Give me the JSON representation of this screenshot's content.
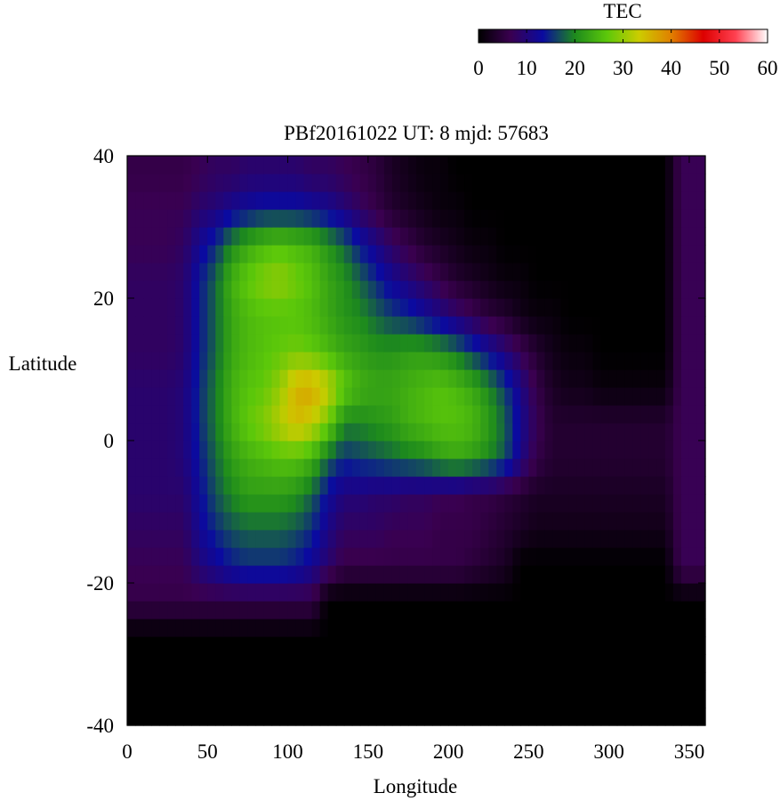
{
  "chart_data": {
    "type": "heatmap",
    "title": "PBf20161022  UT: 8  mjd: 57683",
    "xlabel": "Longitude",
    "ylabel": "Latitude",
    "xlim": [
      0,
      360
    ],
    "ylim": [
      -40,
      40
    ],
    "xticks": [
      0,
      50,
      100,
      150,
      200,
      250,
      300,
      350
    ],
    "yticks": [
      40,
      20,
      0,
      -20,
      -40
    ],
    "grid": false,
    "colorbar": {
      "label": "TEC",
      "range": [
        0,
        60
      ],
      "ticks": [
        0,
        10,
        20,
        30,
        40,
        50,
        60
      ],
      "colormap": [
        "#000000",
        "#3a0050",
        "#0a0aa0",
        "#1d8a1d",
        "#5cc80a",
        "#cccc00",
        "#e08000",
        "#dd0000",
        "#ff4050",
        "#ffffff"
      ],
      "placement": "top-right"
    },
    "grid_step": {
      "lon": 10,
      "lat": 5
    },
    "tec": [
      [
        0,
        0,
        0,
        0,
        0,
        0,
        0,
        0,
        0,
        0,
        0,
        0,
        0,
        0,
        0,
        0,
        0,
        0,
        0,
        0,
        0,
        0,
        0,
        0,
        0,
        0,
        0,
        0,
        0,
        0,
        0,
        0,
        0,
        0,
        0,
        0
      ],
      [
        0,
        0,
        0,
        0,
        0,
        0,
        0,
        0,
        0,
        0,
        0,
        0,
        0,
        0,
        0,
        0,
        0,
        0,
        0,
        0,
        0,
        0,
        0,
        0,
        0,
        0,
        0,
        0,
        0,
        0,
        0,
        0,
        0,
        0,
        0,
        0
      ],
      [
        0,
        0,
        0,
        0,
        0,
        0,
        0,
        0,
        0,
        0,
        0,
        0,
        0,
        0,
        0,
        0,
        0,
        0,
        0,
        0,
        0,
        0,
        0,
        0,
        0,
        0,
        0,
        0,
        0,
        0,
        0,
        0,
        0,
        0,
        0,
        0
      ],
      [
        6,
        6,
        6,
        6,
        6,
        6,
        6,
        6,
        6,
        6,
        6,
        6,
        0,
        0,
        0,
        0,
        0,
        0,
        0,
        0,
        0,
        0,
        0,
        0,
        0,
        0,
        0,
        0,
        0,
        0,
        0,
        0,
        0,
        0,
        0,
        0
      ],
      [
        7,
        7,
        7,
        7,
        10,
        12,
        14,
        15,
        15,
        15,
        14,
        12,
        9,
        6,
        6,
        6,
        6,
        6,
        6,
        6,
        6,
        5,
        4,
        3,
        0,
        0,
        0,
        0,
        0,
        0,
        0,
        0,
        0,
        0,
        7,
        7
      ],
      [
        8,
        8,
        8,
        8,
        12,
        15,
        17,
        18,
        18,
        18,
        17,
        15,
        11,
        8,
        8,
        8,
        7,
        7,
        7,
        6,
        6,
        6,
        5,
        4,
        3,
        2,
        2,
        2,
        2,
        2,
        2,
        2,
        2,
        2,
        7,
        7
      ],
      [
        9,
        9,
        9,
        9,
        13,
        17,
        20,
        22,
        22,
        22,
        21,
        18,
        13,
        10,
        10,
        9,
        9,
        8,
        8,
        7,
        7,
        6,
        6,
        5,
        4,
        3,
        3,
        3,
        3,
        3,
        3,
        3,
        3,
        3,
        7,
        7
      ],
      [
        9,
        9,
        9,
        10,
        14,
        18,
        22,
        24,
        25,
        26,
        26,
        24,
        18,
        15,
        16,
        17,
        18,
        19,
        20,
        22,
        23,
        22,
        20,
        17,
        11,
        6,
        4,
        4,
        4,
        4,
        4,
        4,
        4,
        4,
        7,
        7
      ],
      [
        9,
        9,
        9,
        10,
        15,
        19,
        24,
        27,
        29,
        32,
        35,
        33,
        28,
        20,
        20,
        21,
        22,
        24,
        25,
        26,
        26,
        25,
        22,
        18,
        12,
        7,
        4,
        4,
        4,
        4,
        4,
        4,
        4,
        4,
        7,
        7
      ],
      [
        9,
        9,
        9,
        10,
        15,
        19,
        24,
        26,
        27,
        30,
        36,
        37,
        33,
        27,
        24,
        23,
        23,
        24,
        25,
        26,
        25,
        23,
        20,
        16,
        11,
        6,
        3,
        2,
        2,
        1,
        1,
        1,
        1,
        1,
        7,
        7
      ],
      [
        8,
        8,
        8,
        9,
        14,
        18,
        23,
        25,
        26,
        27,
        28,
        27,
        25,
        23,
        22,
        21,
        21,
        22,
        22,
        21,
        19,
        16,
        13,
        10,
        7,
        4,
        2,
        1,
        1,
        0,
        0,
        0,
        0,
        0,
        7,
        7
      ],
      [
        8,
        8,
        8,
        9,
        14,
        18,
        23,
        25,
        26,
        26,
        26,
        25,
        23,
        21,
        20,
        18,
        16,
        15,
        13,
        11,
        9,
        7,
        5,
        4,
        2,
        1,
        1,
        0,
        0,
        0,
        0,
        0,
        0,
        0,
        7,
        7
      ],
      [
        8,
        8,
        8,
        9,
        14,
        18,
        24,
        27,
        29,
        30,
        28,
        26,
        23,
        21,
        18,
        15,
        12,
        10,
        8,
        6,
        4,
        3,
        2,
        1,
        1,
        0,
        0,
        0,
        0,
        0,
        0,
        0,
        0,
        0,
        7,
        7
      ],
      [
        7,
        7,
        7,
        8,
        12,
        15,
        20,
        23,
        25,
        26,
        25,
        24,
        21,
        18,
        14,
        11,
        8,
        6,
        4,
        3,
        2,
        1,
        1,
        0,
        0,
        0,
        0,
        0,
        0,
        0,
        0,
        0,
        0,
        0,
        7,
        7
      ],
      [
        7,
        7,
        7,
        7,
        9,
        10,
        12,
        13,
        14,
        14,
        14,
        13,
        12,
        10,
        8,
        6,
        4,
        3,
        2,
        1,
        1,
        0,
        0,
        0,
        0,
        0,
        0,
        0,
        0,
        0,
        0,
        0,
        0,
        0,
        7,
        7
      ],
      [
        6,
        6,
        6,
        6,
        7,
        8,
        8,
        9,
        9,
        9,
        9,
        8,
        8,
        7,
        6,
        5,
        3,
        2,
        1,
        1,
        0,
        0,
        0,
        0,
        0,
        0,
        0,
        0,
        0,
        0,
        0,
        0,
        0,
        0,
        7,
        7
      ]
    ]
  }
}
